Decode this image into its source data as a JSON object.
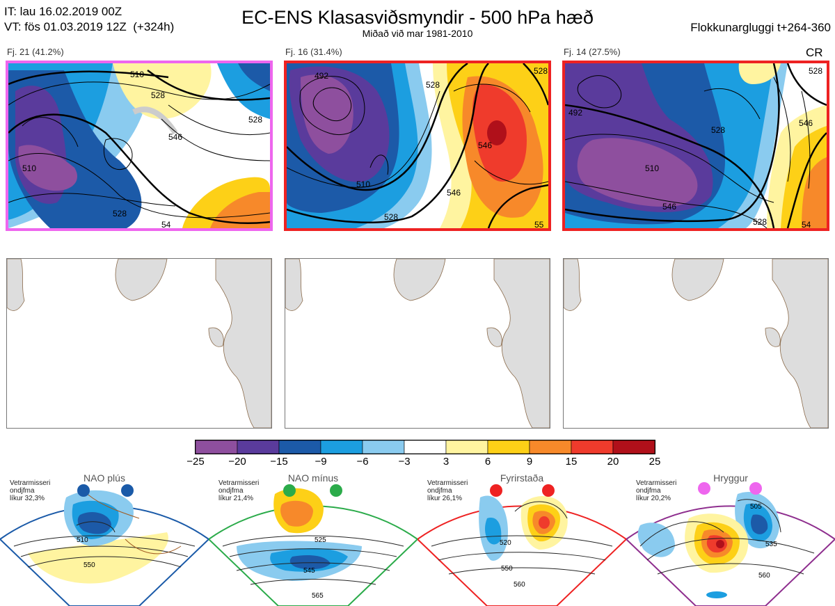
{
  "header": {
    "it_line": "IT: lau 16.02.2019 00Z",
    "vt_line": "VT: fös 01.03.2019 12Z  (+324h)",
    "title": "EC-ENS Klasasviðsmyndir - 500 hPa hæð",
    "subtitle": "Miðað við mar 1981-2010",
    "window": "Flokkunargluggi t+264-360"
  },
  "clusters": [
    {
      "label": "Fj. 21 (41.2%)",
      "border": "#ee66ee",
      "contours": [
        "510",
        "528",
        "546",
        "528",
        "510",
        "528",
        "54"
      ]
    },
    {
      "label": "Fj. 16 (31.4%)",
      "border": "#ee2222",
      "contours": [
        "492",
        "510",
        "528",
        "546",
        "528",
        "546",
        "528",
        "55"
      ]
    },
    {
      "label": "Fj. 14 (27.5%)",
      "border": "#ee2222",
      "contours": [
        "492",
        "510",
        "528",
        "546",
        "528",
        "546",
        "528",
        "54"
      ],
      "tag": "CR"
    }
  ],
  "colorbar": {
    "ticks": [
      "−25",
      "−20",
      "−15",
      "−9",
      "−6",
      "−3",
      "3",
      "6",
      "9",
      "15",
      "20",
      "25"
    ],
    "colors": [
      "#8e4f9e",
      "#5a3b9c",
      "#1c5aa8",
      "#1c9ee0",
      "#8acbef",
      "#ffffff",
      "#fff4a0",
      "#fdd017",
      "#f7892a",
      "#ef3b2c",
      "#b0101a"
    ]
  },
  "regimes": [
    {
      "name": "NAO plús",
      "desc": [
        "Vetrarmisseri",
        "ondjfma",
        "líkur 32,3%"
      ],
      "color": "#1a5aa8",
      "contours": [
        "510",
        "550"
      ]
    },
    {
      "name": "NAO mínus",
      "desc": [
        "Vetrarmisseri",
        "ondjfma",
        "líkur 21,4%"
      ],
      "color": "#2bab4a",
      "contours": [
        "525",
        "545",
        "565"
      ]
    },
    {
      "name": "Fyrirstaða",
      "desc": [
        "Vetrarmisseri",
        "ondjfma",
        "líkur 26,1%"
      ],
      "color": "#ee2222",
      "contours": [
        "520",
        "550",
        "560"
      ]
    },
    {
      "name": "Hryggur",
      "desc": [
        "Vetrarmisseri",
        "ondjfma",
        "líkur 20,2%"
      ],
      "color": "#ee66ee",
      "contours": [
        "505",
        "535",
        "560"
      ]
    }
  ]
}
